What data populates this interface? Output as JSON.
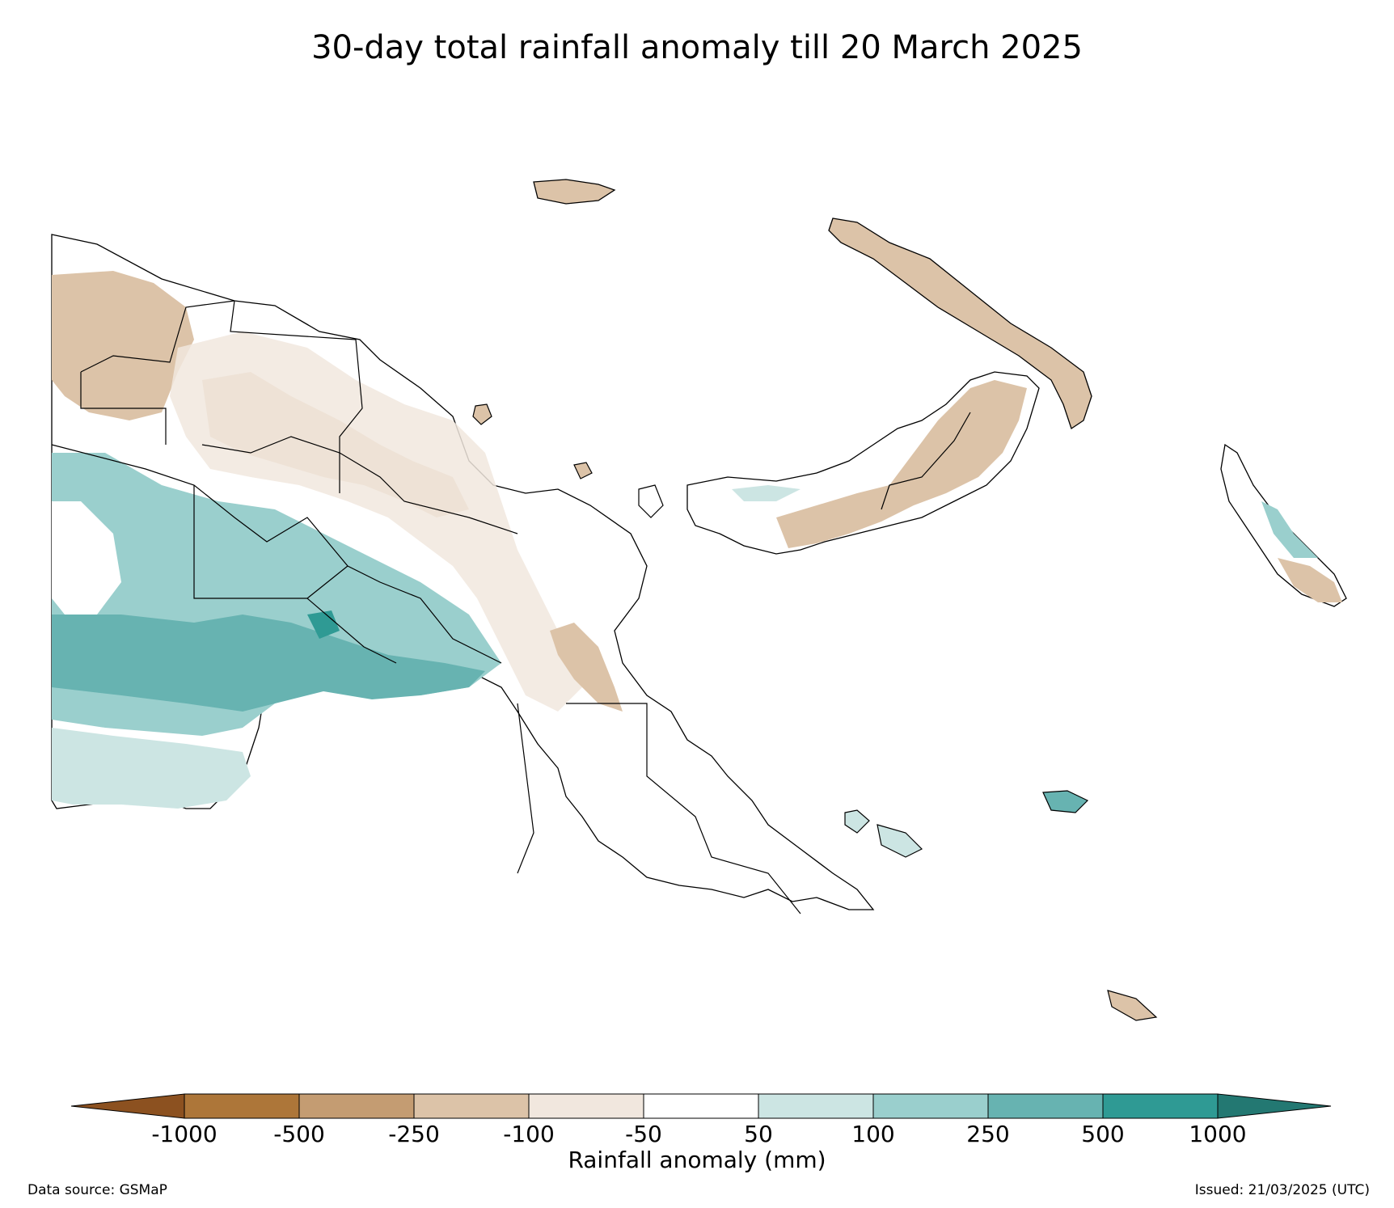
{
  "title": "30-day total rainfall anomaly till 20 March 2025",
  "legend": {
    "label": "Rainfall anomaly (mm)",
    "ticks": [
      "-1000",
      "-500",
      "-250",
      "-100",
      "-50",
      "50",
      "100",
      "250",
      "500",
      "1000"
    ],
    "bins": [
      {
        "range": "< -1000",
        "color": "#8c5120"
      },
      {
        "range": "-1000 to -500",
        "color": "#ad7639"
      },
      {
        "range": "-500 to -250",
        "color": "#c49c72"
      },
      {
        "range": "-250 to -100",
        "color": "#dcc3a8"
      },
      {
        "range": "-100 to -50",
        "color": "#f1e7de"
      },
      {
        "range": "-50 to 50",
        "color": "#ffffff"
      },
      {
        "range": "50 to 100",
        "color": "#cce5e3"
      },
      {
        "range": "100 to 250",
        "color": "#9acfcd"
      },
      {
        "range": "250 to 500",
        "color": "#67b3b1"
      },
      {
        "range": "500 to 1000",
        "color": "#2f9a94"
      },
      {
        "range": "> 1000",
        "color": "#237872"
      }
    ]
  },
  "footer": {
    "source": "Data source: GSMaP",
    "issued": "Issued: 21/03/2025 (UTC)"
  }
}
